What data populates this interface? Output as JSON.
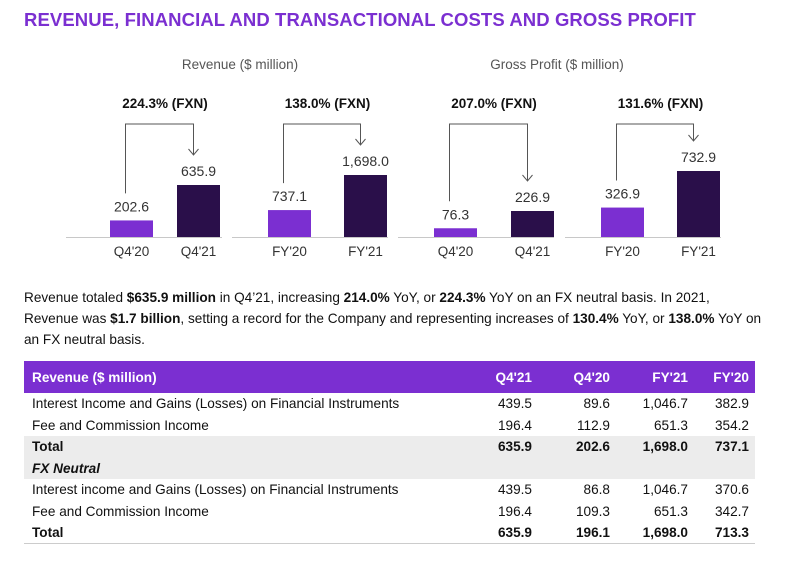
{
  "title": "REVENUE, FINANCIAL AND TRANSACTIONAL COSTS AND GROSS PROFIT",
  "colors": {
    "accent": "#7b2fd1",
    "bar_light": "#7b2fd1",
    "bar_dark": "#2a0f4a"
  },
  "chart_data": [
    {
      "type": "bar",
      "group": "Revenue ($ million)",
      "title": "224.3% (FXN)",
      "categories": [
        "Q4'20",
        "Q4'21"
      ],
      "values": [
        202.6,
        635.9
      ],
      "value_labels": [
        "202.6",
        "635.9"
      ]
    },
    {
      "type": "bar",
      "group": "Revenue ($ million)",
      "title": "138.0% (FXN)",
      "categories": [
        "FY'20",
        "FY'21"
      ],
      "values": [
        737.1,
        1698.0
      ],
      "value_labels": [
        "737.1",
        "1,698.0"
      ]
    },
    {
      "type": "bar",
      "group": "Gross Profit ($ million)",
      "title": "207.0% (FXN)",
      "categories": [
        "Q4'20",
        "Q4'21"
      ],
      "values": [
        76.3,
        226.9
      ],
      "value_labels": [
        "76.3",
        "226.9"
      ]
    },
    {
      "type": "bar",
      "group": "Gross Profit ($ million)",
      "title": "131.6% (FXN)",
      "categories": [
        "FY'20",
        "FY'21"
      ],
      "values": [
        326.9,
        732.9
      ],
      "value_labels": [
        "326.9",
        "732.9"
      ]
    }
  ],
  "group_titles": {
    "revenue": "Revenue ($ million)",
    "gross_profit": "Gross Profit ($ million)"
  },
  "paragraph": {
    "p1": "Revenue totaled ",
    "b1": "$635.9 million",
    "p2": " in Q4’21, increasing ",
    "b2": "214.0%",
    "p3": " YoY, or ",
    "b3": "224.3%",
    "p4": " YoY on an FX neutral basis. In 2021, Revenue was ",
    "b4": "$1.7 billion",
    "p5": ", setting a record for the Company and representing increases of ",
    "b5": "130.4%",
    "p6": " YoY, or ",
    "b6": "138.0%",
    "p7": " YoY on an FX neutral basis."
  },
  "table": {
    "headers": [
      "Revenue ($ million)",
      "Q4'21",
      "Q4'20",
      "FY'21",
      "FY'20"
    ],
    "rows": [
      [
        "Interest Income and Gains (Losses) on Financial Instruments",
        "439.5",
        "89.6",
        "1,046.7",
        "382.9"
      ],
      [
        "Fee and Commission Income",
        "196.4",
        "112.9",
        "651.3",
        "354.2"
      ],
      [
        "Total",
        "635.9",
        "202.6",
        "1,698.0",
        "737.1"
      ],
      [
        "FX Neutral",
        "",
        "",
        "",
        ""
      ],
      [
        "Interest income and Gains (Losses) on Financial Instruments",
        "439.5",
        "86.8",
        "1,046.7",
        "370.6"
      ],
      [
        "Fee and Commission Income",
        "196.4",
        "109.3",
        "651.3",
        "342.7"
      ],
      [
        "Total",
        "635.9",
        "196.1",
        "1,698.0",
        "713.3"
      ]
    ]
  }
}
